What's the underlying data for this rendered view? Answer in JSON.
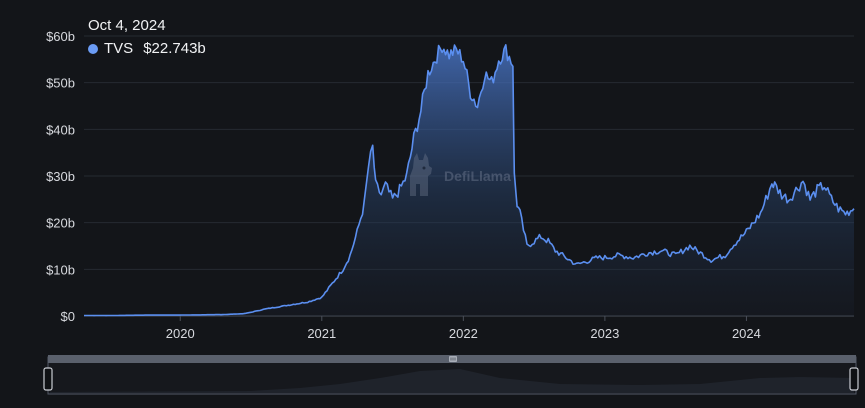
{
  "tooltip": {
    "date": "Oct 4, 2024",
    "series_name": "TVS",
    "value": "$22.743b"
  },
  "watermark": {
    "text": "DefiLlama"
  },
  "colors": {
    "line": "#5b8ff0",
    "background": "#131519",
    "tick_text": "#d7d9de",
    "dot": "#6b9cf5",
    "slider_frame": "#6e7684"
  },
  "slider": {
    "handle_icon": "drag-handle-icon",
    "start": 0,
    "end": 1
  },
  "chart_data": {
    "type": "area",
    "title": "",
    "xlabel": "",
    "ylabel": "",
    "ylim": [
      0,
      60
    ],
    "yticks": [
      0,
      10,
      20,
      30,
      40,
      50,
      60
    ],
    "ytick_labels": [
      "$0",
      "$10b",
      "$20b",
      "$30b",
      "$40b",
      "$50b",
      "$60b"
    ],
    "xlim": [
      2019.32,
      2024.76
    ],
    "xticks": [
      2020,
      2021,
      2022,
      2023,
      2024
    ],
    "xtick_labels": [
      "2020",
      "2021",
      "2022",
      "2023",
      "2024"
    ],
    "grid": "horizontal",
    "series": [
      {
        "name": "TVS",
        "x": [
          2019.32,
          2019.5,
          2019.8,
          2020.0,
          2020.3,
          2020.45,
          2020.5,
          2020.6,
          2020.7,
          2020.8,
          2020.9,
          2021.0,
          2021.05,
          2021.1,
          2021.15,
          2021.2,
          2021.25,
          2021.3,
          2021.33,
          2021.36,
          2021.38,
          2021.42,
          2021.45,
          2021.5,
          2021.55,
          2021.6,
          2021.65,
          2021.7,
          2021.75,
          2021.8,
          2021.85,
          2021.9,
          2021.95,
          2022.0,
          2022.05,
          2022.1,
          2022.15,
          2022.2,
          2022.25,
          2022.3,
          2022.35,
          2022.36,
          2022.38,
          2022.4,
          2022.45,
          2022.5,
          2022.55,
          2022.6,
          2022.65,
          2022.7,
          2022.75,
          2022.8,
          2022.85,
          2022.9,
          2022.95,
          2023.0,
          2023.1,
          2023.2,
          2023.3,
          2023.4,
          2023.5,
          2023.6,
          2023.7,
          2023.75,
          2023.8,
          2023.85,
          2023.9,
          2023.95,
          2024.0,
          2024.05,
          2024.1,
          2024.15,
          2024.18,
          2024.2,
          2024.25,
          2024.3,
          2024.35,
          2024.4,
          2024.45,
          2024.5,
          2024.55,
          2024.6,
          2024.65,
          2024.7,
          2024.76
        ],
        "y": [
          0.1,
          0.1,
          0.2,
          0.2,
          0.3,
          0.5,
          0.8,
          1.5,
          2.0,
          2.5,
          3.0,
          4.0,
          6.0,
          8.0,
          10.0,
          13.0,
          18.0,
          24.0,
          32.0,
          36.0,
          28.0,
          26.0,
          28.0,
          25.0,
          27.0,
          30.0,
          38.0,
          44.0,
          52.0,
          55.0,
          58.0,
          56.0,
          57.0,
          55.0,
          48.0,
          45.0,
          52.0,
          50.0,
          55.0,
          57.0,
          54.0,
          30.0,
          24.0,
          22.0,
          15.0,
          16.0,
          17.0,
          16.0,
          14.0,
          13.0,
          12.0,
          11.0,
          11.5,
          12.0,
          12.5,
          12.5,
          13.0,
          12.5,
          13.5,
          14.0,
          13.0,
          15.0,
          13.0,
          12.0,
          12.5,
          13.0,
          15.0,
          16.5,
          18.0,
          20.0,
          22.0,
          26.0,
          28.5,
          28.0,
          26.0,
          25.0,
          27.0,
          29.0,
          25.0,
          27.0,
          28.0,
          25.0,
          23.0,
          22.0,
          23.0
        ]
      }
    ]
  }
}
